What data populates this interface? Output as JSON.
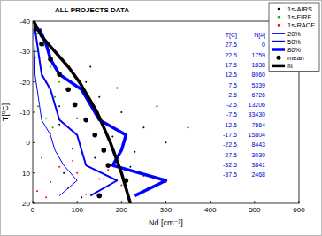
{
  "chart_data": {
    "type": "scatter",
    "title": "ALL PROJECTS DATA",
    "x_label": "Nd [cm⁻³]",
    "y_label": "T[⁰C]",
    "xlim": [
      0,
      600
    ],
    "xticks": [
      0,
      100,
      200,
      300,
      400,
      500,
      600
    ],
    "ylim": [
      20,
      -40
    ],
    "yticks": [
      -40,
      -30,
      -20,
      -10,
      0,
      10,
      20
    ],
    "grid": false,
    "legend": "top-right",
    "series": [
      {
        "name": "1s-AIRS",
        "type": "scatter",
        "marker": "dot",
        "color": "#000000",
        "x": [
          20,
          50,
          80,
          30,
          120,
          150,
          60,
          200,
          100,
          250,
          40,
          180,
          300,
          90,
          140,
          220,
          350,
          70,
          160,
          260,
          110,
          10,
          5,
          190,
          280,
          130,
          230,
          60
        ],
        "values": [
          -35,
          -30,
          -25,
          -20,
          -20,
          -15,
          -12,
          -10,
          -8,
          -5,
          -3,
          -2,
          0,
          2,
          5,
          8,
          -5,
          10,
          12,
          15,
          18,
          -38,
          -28,
          -18,
          -12,
          -25,
          3,
          -6
        ]
      },
      {
        "name": "1s-FIRE",
        "type": "scatter",
        "marker": "dot",
        "color": "#00b000",
        "x": [
          10,
          25,
          15,
          40,
          20,
          35,
          50,
          12,
          30,
          45,
          8,
          60
        ],
        "values": [
          -36,
          -32,
          -28,
          -25,
          -22,
          -18,
          -15,
          -12,
          -8,
          -5,
          -30,
          -20
        ]
      },
      {
        "name": "1s-RACE",
        "type": "scatter",
        "marker": "dot",
        "color": "#ff0000",
        "x": [
          20,
          60,
          100,
          150,
          200,
          40,
          80,
          120,
          250,
          30,
          170,
          90,
          300,
          10
        ],
        "values": [
          5,
          8,
          10,
          12,
          14,
          13,
          15,
          17,
          11,
          18,
          9,
          6,
          13,
          16
        ]
      },
      {
        "name": "20%",
        "type": "line",
        "line_style": "thin",
        "color": "#0000ff",
        "x": [
          60,
          100,
          70,
          50,
          40,
          20,
          15,
          10,
          5,
          5,
          3,
          2
        ],
        "values": [
          17.5,
          12.5,
          7.5,
          2.5,
          -2.5,
          -7.5,
          -12.5,
          -17.5,
          -22.5,
          -27.5,
          -32.5,
          -37.5
        ]
      },
      {
        "name": "50%",
        "type": "line",
        "line_style": "medium",
        "color": "#0000ff",
        "x": [
          130,
          190,
          120,
          110,
          100,
          60,
          50,
          40,
          20,
          15,
          10,
          5
        ],
        "values": [
          17.5,
          12.5,
          7.5,
          2.5,
          -2.5,
          -7.5,
          -12.5,
          -17.5,
          -22.5,
          -27.5,
          -32.5,
          -37.5
        ]
      },
      {
        "name": "80%",
        "type": "line",
        "line_style": "thick",
        "color": "#0000ff",
        "x": [
          230,
          300,
          180,
          200,
          210,
          150,
          130,
          110,
          60,
          40,
          30,
          15
        ],
        "values": [
          17.5,
          12.5,
          7.5,
          2.5,
          -2.5,
          -7.5,
          -12.5,
          -17.5,
          -22.5,
          -27.5,
          -32.5,
          -37.5
        ]
      },
      {
        "name": "mean",
        "type": "scatter",
        "marker": "big-dot",
        "color": "#000000",
        "x": [
          150,
          210,
          170,
          160,
          140,
          120,
          95,
          80,
          60,
          40,
          20,
          8
        ],
        "values": [
          17.5,
          12.5,
          7.5,
          2.5,
          -2.5,
          -7.5,
          -12.5,
          -17.5,
          -22.5,
          -27.5,
          -32.5,
          -37.5
        ]
      },
      {
        "name": "fit",
        "type": "line",
        "line_style": "thick",
        "color": "#000000",
        "x": [
          2,
          20,
          50,
          80,
          105,
          145,
          175,
          200,
          220
        ],
        "values": [
          -40,
          -35,
          -30,
          -25,
          -20,
          -10,
          0,
          10,
          20
        ]
      }
    ],
    "table": {
      "columns": [
        "T[C]",
        "N[#]"
      ],
      "rows": [
        [
          27.5,
          0
        ],
        [
          22.5,
          1759
        ],
        [
          17.5,
          1838
        ],
        [
          12.5,
          8060
        ],
        [
          7.5,
          5339
        ],
        [
          2.5,
          6726
        ],
        [
          -2.5,
          13206
        ],
        [
          -7.5,
          33430
        ],
        [
          -12.5,
          7864
        ],
        [
          -17.5,
          15804
        ],
        [
          -22.5,
          8443
        ],
        [
          -27.5,
          3030
        ],
        [
          -32.5,
          3841
        ],
        [
          -37.5,
          2468
        ]
      ]
    }
  }
}
